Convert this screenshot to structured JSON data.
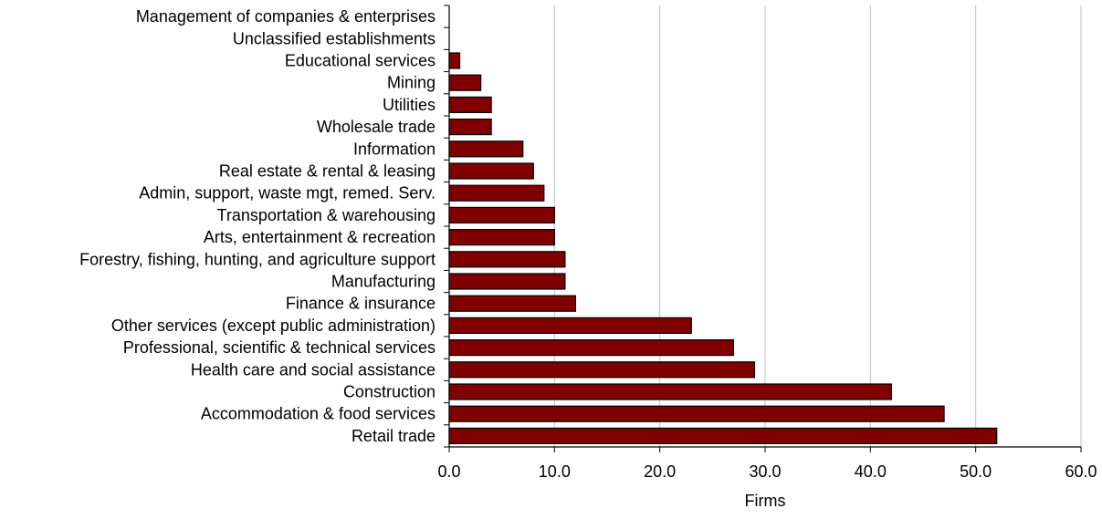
{
  "chart_data": {
    "type": "bar",
    "orientation": "horizontal",
    "categories": [
      "Management of companies & enterprises",
      "Unclassified establishments",
      "Educational services",
      "Mining",
      "Utilities",
      "Wholesale trade",
      "Information",
      "Real estate & rental & leasing",
      "Admin, support, waste mgt, remed. Serv.",
      "Transportation & warehousing",
      "Arts, entertainment & recreation",
      "Forestry, fishing, hunting, and agriculture support",
      "Manufacturing",
      "Finance & insurance",
      "Other services (except public administration)",
      "Professional, scientific & technical services",
      "Health care and social assistance",
      "Construction",
      "Accommodation & food services",
      "Retail trade"
    ],
    "values": [
      0,
      0,
      1,
      3,
      4,
      4,
      7,
      8,
      9,
      10,
      10,
      11,
      11,
      12,
      23,
      27,
      29,
      42,
      47,
      52
    ],
    "xlabel": "Firms",
    "xlim": [
      0,
      60
    ],
    "xticks": [
      "0.0",
      "10.0",
      "20.0",
      "30.0",
      "40.0",
      "50.0",
      "60.0"
    ],
    "grid": "vertical",
    "bar_color": "#800000",
    "legend": "none"
  }
}
